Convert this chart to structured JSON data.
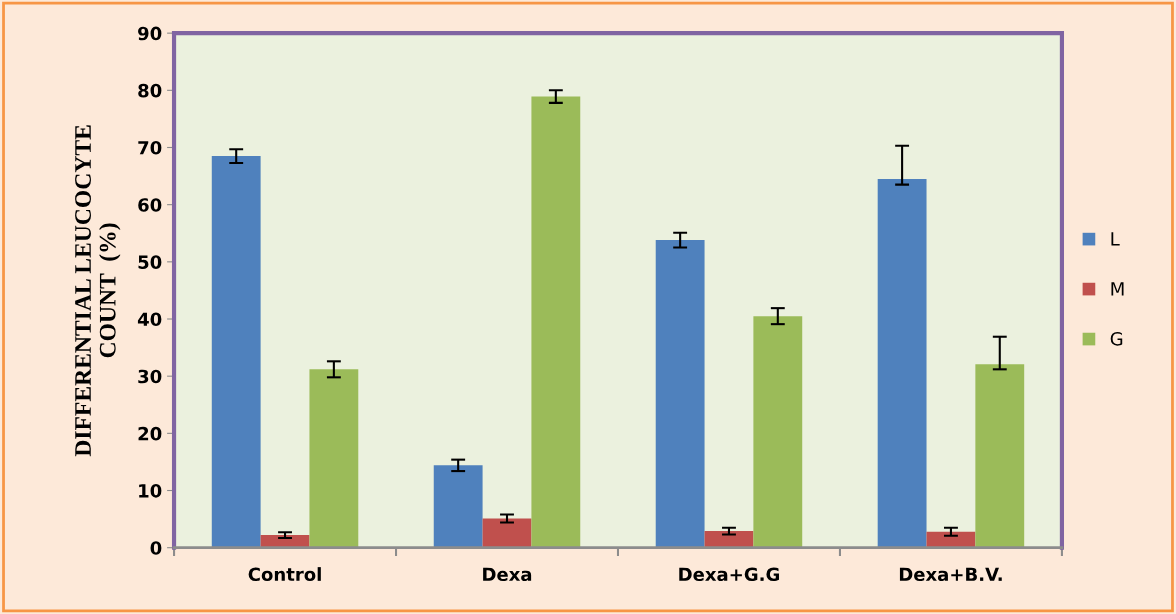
{
  "chart_data": {
    "type": "bar",
    "ylabel": "DIFFERENTIAL LEUCOCYTE\nCOUNT  (%)",
    "categories": [
      "Control",
      "Dexa",
      "Dexa+G.G",
      "Dexa+B.V."
    ],
    "series": [
      {
        "name": "L",
        "color": "#4f81bd",
        "values": [
          68.5,
          14.4,
          53.8,
          64.5
        ],
        "errors": [
          1.2,
          1.0,
          1.3,
          [
            63.5,
            70.3
          ]
        ]
      },
      {
        "name": "M",
        "color": "#c0504d",
        "values": [
          2.2,
          5.1,
          2.9,
          2.8
        ],
        "errors": [
          0.5,
          0.7,
          0.6,
          0.7
        ]
      },
      {
        "name": "G",
        "color": "#9bbb59",
        "values": [
          31.2,
          78.9,
          40.5,
          32.1
        ],
        "errors": [
          1.4,
          1.1,
          1.4,
          [
            31.2,
            36.9
          ]
        ]
      }
    ],
    "ylim": [
      0,
      90
    ],
    "yticks": [
      0,
      10,
      20,
      30,
      40,
      50,
      60,
      70,
      80,
      90
    ],
    "grid": false,
    "legend": "right"
  }
}
